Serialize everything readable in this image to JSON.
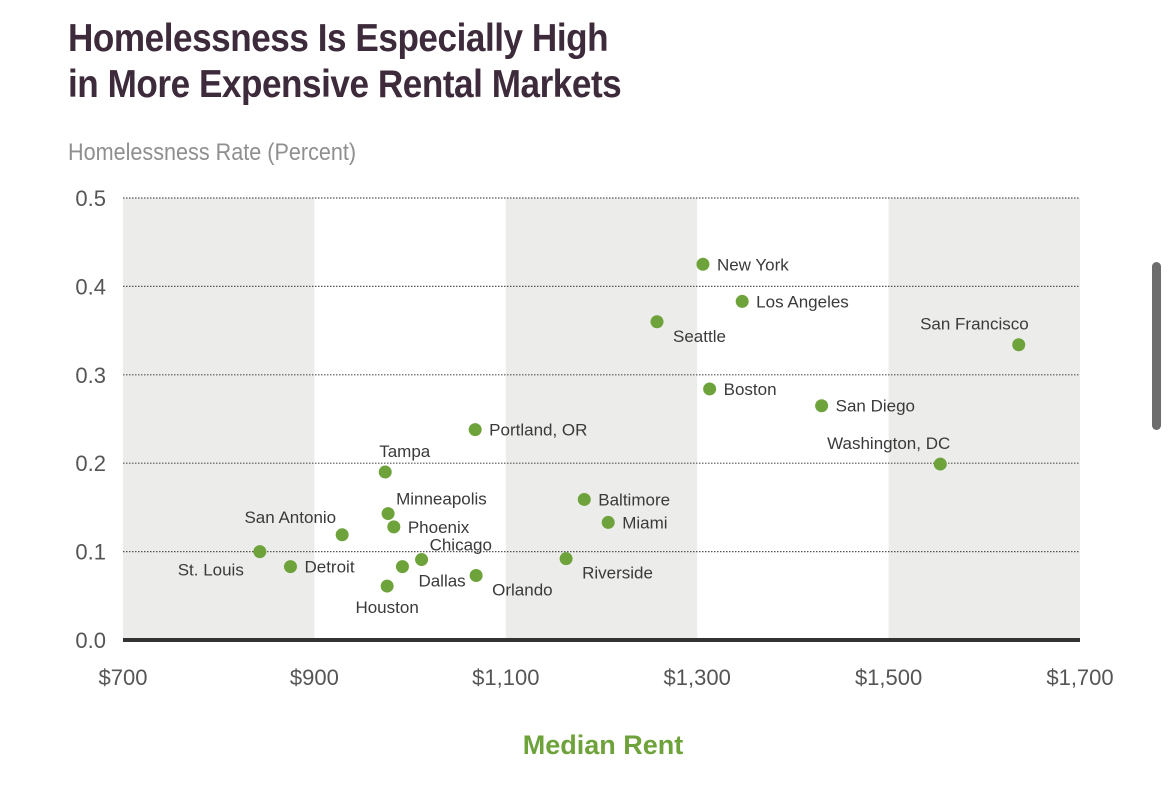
{
  "title": {
    "line1": "Homelessness Is Especially High",
    "line2": "in More Expensive Rental Markets"
  },
  "colors": {
    "title": "#3d2a3a",
    "axis_label": "#8f8f8f",
    "accent": "#6ea23a",
    "band": "#ececea",
    "grid": "#555555",
    "text": "#3a3a3a"
  },
  "chart_data": {
    "type": "scatter",
    "title": "Homelessness Is Especially High in More Expensive Rental Markets",
    "xlabel": "Median Rent",
    "ylabel": "Homelessness Rate (Percent)",
    "xlim": [
      700,
      1700
    ],
    "ylim": [
      0.0,
      0.5
    ],
    "x_ticks": [
      700,
      900,
      1100,
      1300,
      1500,
      1700
    ],
    "x_tick_labels": [
      "$700",
      "$900",
      "$1,100",
      "$1,300",
      "$1,500",
      "$1,700"
    ],
    "y_ticks": [
      0.0,
      0.1,
      0.2,
      0.3,
      0.4,
      0.5
    ],
    "y_tick_labels": [
      "0.0",
      "0.1",
      "0.2",
      "0.3",
      "0.4",
      "0.5"
    ],
    "grid": "horizontal-dotted",
    "shaded_bands": [
      [
        700,
        900
      ],
      [
        1100,
        1300
      ],
      [
        1500,
        1700
      ]
    ],
    "points": [
      {
        "label": "New York",
        "x": 1306,
        "y": 0.425,
        "label_side": "right"
      },
      {
        "label": "Los Angeles",
        "x": 1347,
        "y": 0.383,
        "label_side": "right"
      },
      {
        "label": "Seattle",
        "x": 1258,
        "y": 0.36,
        "label_side": "right-below"
      },
      {
        "label": "San Francisco",
        "x": 1636,
        "y": 0.334,
        "label_side": "above"
      },
      {
        "label": "Boston",
        "x": 1313,
        "y": 0.284,
        "label_side": "right"
      },
      {
        "label": "San Diego",
        "x": 1430,
        "y": 0.265,
        "label_side": "right"
      },
      {
        "label": "Washington, DC",
        "x": 1554,
        "y": 0.199,
        "label_side": "above"
      },
      {
        "label": "Portland, OR",
        "x": 1068,
        "y": 0.238,
        "label_side": "right"
      },
      {
        "label": "Tampa",
        "x": 974,
        "y": 0.19,
        "label_side": "above"
      },
      {
        "label": "Baltimore",
        "x": 1182,
        "y": 0.159,
        "label_side": "right"
      },
      {
        "label": "Miami",
        "x": 1207,
        "y": 0.133,
        "label_side": "right"
      },
      {
        "label": "Minneapolis",
        "x": 977,
        "y": 0.143,
        "label_side": "right-above"
      },
      {
        "label": "Phoenix",
        "x": 983,
        "y": 0.128,
        "label_side": "right"
      },
      {
        "label": "San Antonio",
        "x": 929,
        "y": 0.119,
        "label_side": "left-above"
      },
      {
        "label": "Chicago",
        "x": 1012,
        "y": 0.091,
        "label_side": "right-above"
      },
      {
        "label": "St. Louis",
        "x": 843,
        "y": 0.1,
        "label_side": "left-below"
      },
      {
        "label": "Detroit",
        "x": 875,
        "y": 0.083,
        "label_side": "right"
      },
      {
        "label": "Dallas",
        "x": 992,
        "y": 0.083,
        "label_side": "right-below"
      },
      {
        "label": "Houston",
        "x": 976,
        "y": 0.061,
        "label_side": "below"
      },
      {
        "label": "Orlando",
        "x": 1069,
        "y": 0.073,
        "label_side": "right-below"
      },
      {
        "label": "Riverside",
        "x": 1163,
        "y": 0.092,
        "label_side": "right-below"
      }
    ]
  }
}
